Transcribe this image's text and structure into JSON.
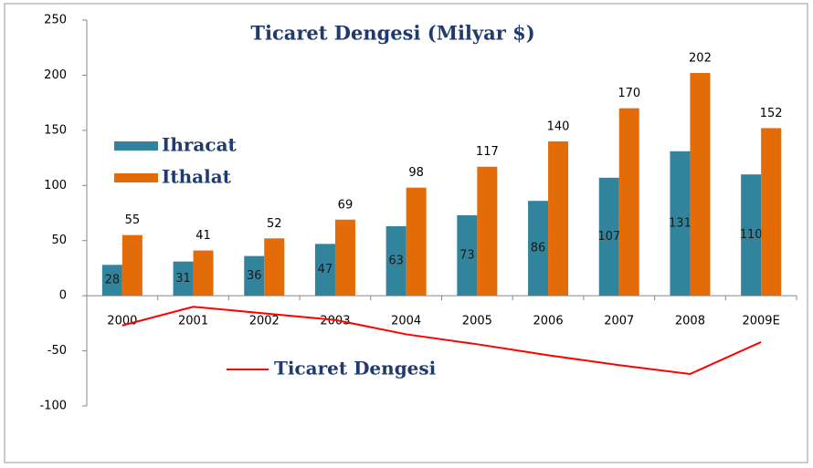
{
  "chart_data": {
    "type": "bar",
    "title": "Ticaret Dengesi (Milyar $)",
    "categories": [
      "2000",
      "2001",
      "2002",
      "2003",
      "2004",
      "2005",
      "2006",
      "2007",
      "2008",
      "2009E"
    ],
    "series": [
      {
        "name": "Ihracat",
        "type": "bar",
        "color": "#31849b",
        "values": [
          28,
          31,
          36,
          47,
          63,
          73,
          86,
          107,
          131,
          110
        ]
      },
      {
        "name": "Ithalat",
        "type": "bar",
        "color": "#e36c09",
        "values": [
          55,
          41,
          52,
          69,
          98,
          117,
          140,
          170,
          202,
          152
        ]
      },
      {
        "name": "Ticaret Dengesi",
        "type": "line",
        "color": "#ff0000",
        "values": [
          -27,
          -10,
          -16,
          -22,
          -35,
          -44,
          -54,
          -63,
          -71,
          -42
        ]
      }
    ],
    "ylim": [
      -100,
      250
    ],
    "yticks": [
      -100,
      -50,
      0,
      50,
      100,
      150,
      200,
      250
    ]
  }
}
